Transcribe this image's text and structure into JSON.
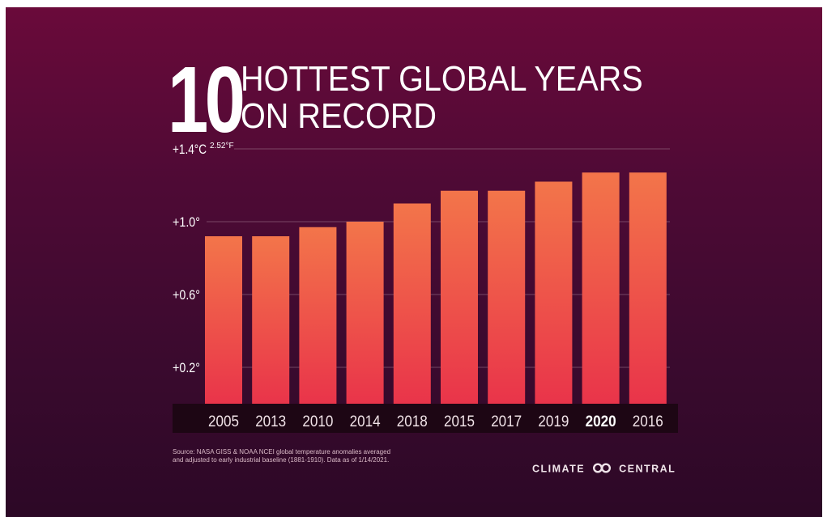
{
  "title": {
    "number": "10",
    "line1": "HOTTEST GLOBAL YEARS",
    "line2": "ON RECORD"
  },
  "chart_data": {
    "type": "bar",
    "title": "10 HOTTEST GLOBAL YEARS ON RECORD",
    "categories": [
      "2005",
      "2013",
      "2010",
      "2014",
      "2018",
      "2015",
      "2017",
      "2019",
      "2020",
      "2016"
    ],
    "highlighted_category": "2020",
    "values": [
      0.92,
      0.92,
      0.97,
      1.0,
      1.1,
      1.17,
      1.17,
      1.22,
      1.27,
      1.27
    ],
    "unit": "°C",
    "ylim": [
      0,
      1.4
    ],
    "yticks": [
      {
        "value": 0.2,
        "label": "+0.2°"
      },
      {
        "value": 0.6,
        "label": "+0.6°"
      },
      {
        "value": 1.0,
        "label": "+1.0°"
      },
      {
        "value": 1.4,
        "label": "+1.4°C",
        "sublabel": "2.52°F"
      }
    ],
    "grid": true,
    "colors": {
      "bar_top": "#f3754a",
      "bar_bottom": "#e9344a",
      "label_strip": "#1d0614"
    }
  },
  "footer": {
    "source_line1": "Source: NASA GISS & NOAA NCEI global temperature anomalies averaged",
    "source_line2": "and adjusted to early industrial baseline (1881-1910). Data as of 1/14/2021.",
    "brand_left": "CLIMATE",
    "brand_right": "CENTRAL",
    "brand_icon": "infinity-logo-icon"
  }
}
